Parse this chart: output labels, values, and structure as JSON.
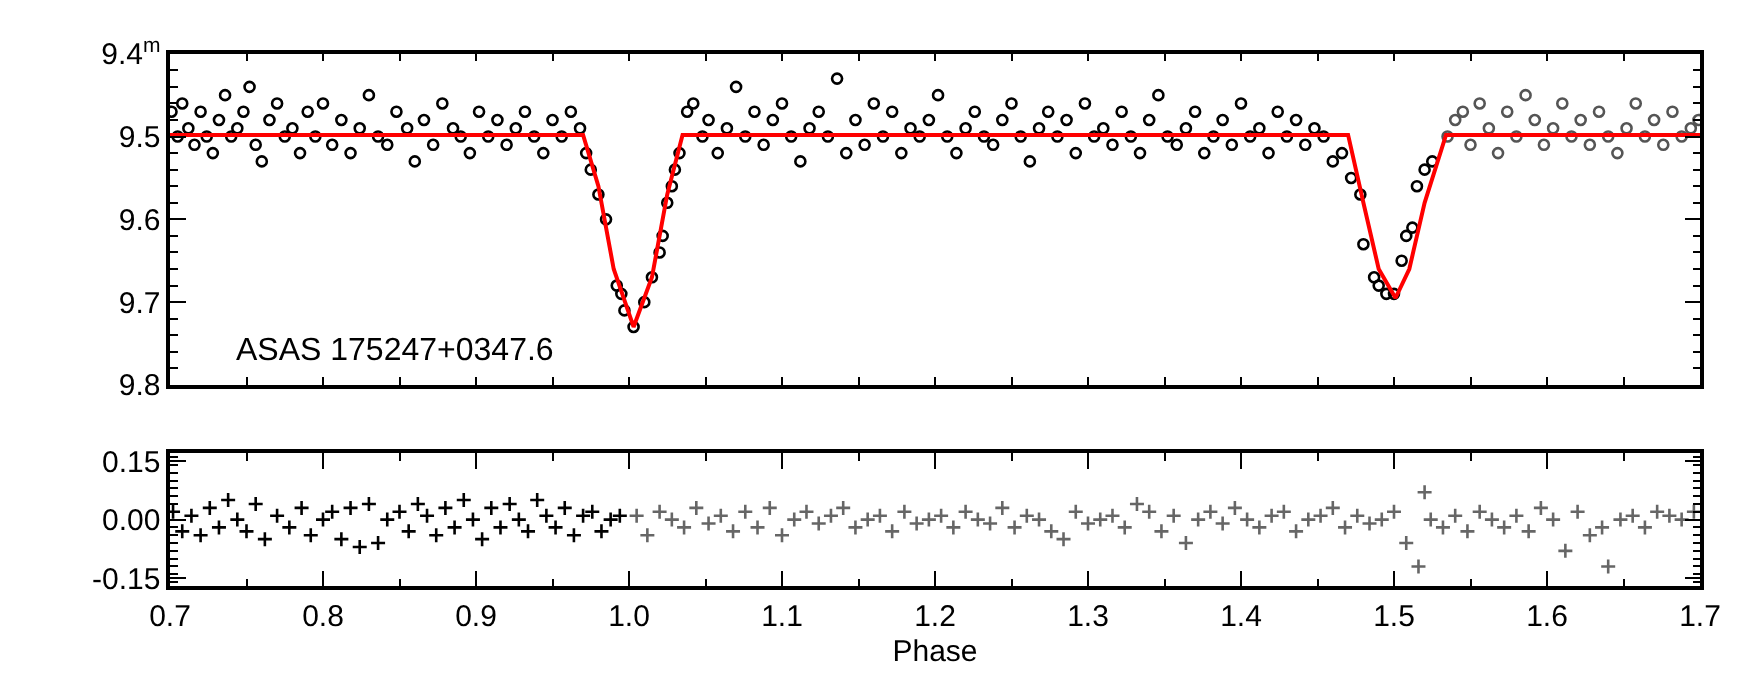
{
  "chart_data": [
    {
      "type": "scatter",
      "marker": "circle",
      "tick_labels": "y",
      "xlim": [
        0.7,
        1.7
      ],
      "xticks": [
        {
          "value": 0.7,
          "label": null
        },
        {
          "value": 0.8,
          "label": null
        },
        {
          "value": 0.9,
          "label": null
        },
        {
          "value": 1.0,
          "label": null
        },
        {
          "value": 1.1,
          "label": null
        },
        {
          "value": 1.2,
          "label": null
        },
        {
          "value": 1.3,
          "label": null
        },
        {
          "value": 1.4,
          "label": null
        },
        {
          "value": 1.5,
          "label": null
        },
        {
          "value": 1.6,
          "label": null
        },
        {
          "value": 1.7,
          "label": null
        }
      ],
      "ylim": [
        9.8,
        9.4
      ],
      "yticks": [
        {
          "value": 9.4,
          "label": "9.4$^{m}$"
        },
        {
          "value": 9.5,
          "label": "9.5"
        },
        {
          "value": 9.6,
          "label": "9.6"
        },
        {
          "value": 9.7,
          "label": "9.7"
        },
        {
          "value": 9.8,
          "label": "9.8"
        }
      ],
      "annotations": [
        "ASAS 175247+0347.6"
      ],
      "series": [
        {
          "color": "#000000",
          "x": [
            0.701,
            0.705,
            0.708,
            0.712,
            0.716,
            0.72,
            0.724,
            0.728,
            0.732,
            0.736,
            0.74,
            0.744,
            0.748,
            0.752,
            0.756,
            0.76,
            0.765,
            0.77,
            0.775,
            0.78,
            0.785,
            0.79,
            0.795,
            0.8,
            0.806,
            0.812,
            0.818,
            0.824,
            0.83,
            0.836,
            0.842,
            0.848,
            0.855,
            0.86,
            0.866,
            0.872,
            0.878,
            0.885,
            0.89,
            0.896,
            0.902,
            0.908,
            0.914,
            0.92,
            0.926,
            0.932,
            0.938,
            0.944,
            0.95,
            0.956,
            0.962,
            0.968,
            0.972,
            0.975,
            0.98,
            0.985,
            0.992,
            0.995,
            0.997,
            1.003,
            1.01,
            1.015,
            1.02,
            1.022,
            1.025,
            1.028,
            1.03,
            1.033,
            1.038,
            1.042,
            1.048,
            1.052,
            1.058,
            1.064,
            1.07,
            1.076,
            1.082,
            1.088,
            1.094,
            1.1,
            1.106,
            1.112,
            1.118,
            1.124,
            1.13,
            1.136,
            1.142,
            1.148,
            1.154,
            1.16,
            1.166,
            1.172,
            1.178,
            1.184,
            1.19,
            1.196,
            1.202,
            1.208,
            1.214,
            1.22,
            1.226,
            1.232,
            1.238,
            1.244,
            1.25,
            1.256,
            1.262,
            1.268,
            1.274,
            1.28,
            1.286,
            1.292,
            1.298,
            1.304,
            1.31,
            1.316,
            1.322,
            1.328,
            1.334,
            1.34,
            1.346,
            1.352,
            1.358,
            1.364,
            1.37,
            1.376,
            1.382,
            1.388,
            1.394,
            1.4,
            1.406,
            1.412,
            1.418,
            1.424,
            1.43,
            1.436,
            1.442,
            1.448,
            1.454,
            1.46,
            1.466,
            1.472,
            1.478,
            1.48,
            1.487,
            1.49,
            1.495,
            1.5,
            1.505,
            1.508,
            1.512,
            1.515,
            1.52,
            1.525
          ],
          "values": [
            9.47,
            9.5,
            9.46,
            9.49,
            9.51,
            9.47,
            9.5,
            9.52,
            9.48,
            9.45,
            9.5,
            9.49,
            9.47,
            9.44,
            9.51,
            9.53,
            9.48,
            9.46,
            9.5,
            9.49,
            9.52,
            9.47,
            9.5,
            9.46,
            9.51,
            9.48,
            9.52,
            9.49,
            9.45,
            9.5,
            9.51,
            9.47,
            9.49,
            9.53,
            9.48,
            9.51,
            9.46,
            9.49,
            9.5,
            9.52,
            9.47,
            9.5,
            9.48,
            9.51,
            9.49,
            9.47,
            9.5,
            9.52,
            9.48,
            9.5,
            9.47,
            9.49,
            9.52,
            9.54,
            9.57,
            9.6,
            9.68,
            9.69,
            9.71,
            9.73,
            9.7,
            9.67,
            9.64,
            9.62,
            9.58,
            9.56,
            9.54,
            9.52,
            9.47,
            9.46,
            9.5,
            9.48,
            9.52,
            9.49,
            9.44,
            9.5,
            9.47,
            9.51,
            9.48,
            9.46,
            9.5,
            9.53,
            9.49,
            9.47,
            9.5,
            9.43,
            9.52,
            9.48,
            9.51,
            9.46,
            9.5,
            9.47,
            9.52,
            9.49,
            9.5,
            9.48,
            9.45,
            9.5,
            9.52,
            9.49,
            9.47,
            9.5,
            9.51,
            9.48,
            9.46,
            9.5,
            9.53,
            9.49,
            9.47,
            9.5,
            9.48,
            9.52,
            9.46,
            9.5,
            9.49,
            9.51,
            9.47,
            9.5,
            9.52,
            9.48,
            9.45,
            9.5,
            9.51,
            9.49,
            9.47,
            9.52,
            9.5,
            9.48,
            9.51,
            9.46,
            9.5,
            9.49,
            9.52,
            9.47,
            9.5,
            9.48,
            9.51,
            9.49,
            9.5,
            9.53,
            9.52,
            9.55,
            9.57,
            9.63,
            9.67,
            9.68,
            9.69,
            9.69,
            9.65,
            9.62,
            9.61,
            9.56,
            9.54,
            9.53
          ]
        },
        {
          "color": "#555555",
          "x": [
            1.535,
            1.54,
            1.545,
            1.55,
            1.556,
            1.562,
            1.568,
            1.574,
            1.58,
            1.586,
            1.592,
            1.598,
            1.604,
            1.61,
            1.616,
            1.622,
            1.628,
            1.634,
            1.64,
            1.646,
            1.652,
            1.658,
            1.664,
            1.67,
            1.676,
            1.682,
            1.688,
            1.694,
            1.699
          ],
          "values": [
            9.5,
            9.48,
            9.47,
            9.51,
            9.46,
            9.49,
            9.52,
            9.47,
            9.5,
            9.45,
            9.48,
            9.51,
            9.49,
            9.46,
            9.5,
            9.48,
            9.51,
            9.47,
            9.5,
            9.52,
            9.49,
            9.46,
            9.5,
            9.48,
            9.51,
            9.47,
            9.5,
            9.49,
            9.48
          ]
        },
        {
          "type": "line",
          "marker": "none",
          "color": "#ff0000",
          "x": [
            0.7,
            0.97,
            0.98,
            0.99,
            1.003,
            1.015,
            1.025,
            1.035,
            1.47,
            1.48,
            1.49,
            1.501,
            1.51,
            1.52,
            1.534,
            1.7
          ],
          "values": [
            9.498,
            9.498,
            9.56,
            9.66,
            9.73,
            9.67,
            9.57,
            9.498,
            9.498,
            9.58,
            9.66,
            9.695,
            9.66,
            9.58,
            9.498,
            9.498
          ]
        }
      ]
    },
    {
      "type": "scatter",
      "marker": "cross",
      "xlabel": "Phase",
      "xlim": [
        0.7,
        1.7
      ],
      "xticks": [
        {
          "value": 0.7,
          "label": "0.7"
        },
        {
          "value": 0.8,
          "label": "0.8"
        },
        {
          "value": 0.9,
          "label": "0.9"
        },
        {
          "value": 1.0,
          "label": "1.0"
        },
        {
          "value": 1.1,
          "label": "1.1"
        },
        {
          "value": 1.2,
          "label": "1.2"
        },
        {
          "value": 1.3,
          "label": "1.3"
        },
        {
          "value": 1.4,
          "label": "1.4"
        },
        {
          "value": 1.5,
          "label": "1.5"
        },
        {
          "value": 1.6,
          "label": "1.6"
        },
        {
          "value": 1.7,
          "label": "1.7"
        }
      ],
      "ylim": [
        -0.17,
        0.17
      ],
      "yticks": [
        {
          "value": 0.15,
          "label": "0.15"
        },
        {
          "value": 0,
          "label": "0.00"
        },
        {
          "value": -0.15,
          "label": "-0.15"
        }
      ],
      "series": [
        {
          "color": "#000000",
          "x": [
            0.702,
            0.708,
            0.714,
            0.72,
            0.726,
            0.732,
            0.738,
            0.744,
            0.75,
            0.756,
            0.762,
            0.77,
            0.778,
            0.786,
            0.792,
            0.8,
            0.806,
            0.812,
            0.818,
            0.824,
            0.83,
            0.836,
            0.842,
            0.85,
            0.856,
            0.862,
            0.868,
            0.874,
            0.88,
            0.886,
            0.892,
            0.898,
            0.904,
            0.91,
            0.916,
            0.922,
            0.928,
            0.934,
            0.94,
            0.946,
            0.952,
            0.958,
            0.964,
            0.97,
            0.976,
            0.982,
            0.988,
            0.994
          ],
          "values": [
            0.02,
            -0.03,
            0.01,
            -0.04,
            0.03,
            -0.02,
            0.05,
            0.0,
            -0.03,
            0.04,
            -0.05,
            0.01,
            -0.02,
            0.03,
            -0.04,
            0.0,
            0.02,
            -0.05,
            0.03,
            -0.07,
            0.04,
            -0.06,
            0.0,
            0.02,
            -0.03,
            0.04,
            0.01,
            -0.04,
            0.03,
            -0.02,
            0.05,
            0.0,
            -0.05,
            0.03,
            -0.02,
            0.04,
            0.0,
            -0.03,
            0.05,
            0.01,
            -0.02,
            0.03,
            -0.04,
            0.01,
            0.02,
            -0.03,
            0.0,
            0.01
          ]
        },
        {
          "color": "#666666",
          "x": [
            1.005,
            1.012,
            1.02,
            1.028,
            1.036,
            1.044,
            1.052,
            1.06,
            1.068,
            1.076,
            1.084,
            1.092,
            1.1,
            1.108,
            1.116,
            1.124,
            1.132,
            1.14,
            1.148,
            1.156,
            1.164,
            1.172,
            1.18,
            1.188,
            1.196,
            1.204,
            1.212,
            1.22,
            1.228,
            1.236,
            1.244,
            1.252,
            1.26,
            1.268,
            1.276,
            1.284,
            1.292,
            1.3,
            1.308,
            1.316,
            1.324,
            1.332,
            1.34,
            1.348,
            1.356,
            1.364,
            1.372,
            1.38,
            1.388,
            1.396,
            1.404,
            1.412,
            1.42,
            1.428,
            1.436,
            1.444,
            1.452,
            1.46,
            1.468,
            1.476,
            1.484,
            1.492,
            1.5,
            1.508,
            1.516,
            1.52,
            1.524,
            1.532,
            1.54,
            1.548,
            1.556,
            1.564,
            1.572,
            1.58,
            1.588,
            1.596,
            1.604,
            1.612,
            1.62,
            1.628,
            1.636,
            1.64,
            1.648,
            1.656,
            1.664,
            1.672,
            1.68,
            1.688,
            1.696
          ],
          "values": [
            0.01,
            -0.04,
            0.02,
            0.0,
            -0.02,
            0.03,
            -0.01,
            0.01,
            -0.03,
            0.02,
            -0.02,
            0.03,
            -0.04,
            0.0,
            0.02,
            -0.01,
            0.01,
            0.03,
            -0.02,
            0.0,
            0.01,
            -0.03,
            0.02,
            -0.01,
            0.0,
            0.01,
            -0.02,
            0.02,
            0.0,
            -0.01,
            0.03,
            -0.02,
            0.01,
            0.0,
            -0.03,
            -0.05,
            0.02,
            -0.01,
            0.0,
            0.01,
            -0.02,
            0.04,
            0.02,
            -0.03,
            0.01,
            -0.06,
            0.0,
            0.02,
            -0.01,
            0.03,
            0.0,
            -0.02,
            0.01,
            0.02,
            -0.03,
            0.0,
            0.01,
            0.03,
            -0.02,
            0.01,
            -0.01,
            0.0,
            0.02,
            -0.06,
            -0.12,
            0.07,
            0.0,
            -0.02,
            0.01,
            -0.03,
            0.02,
            0.0,
            -0.02,
            0.01,
            -0.03,
            0.03,
            0.0,
            -0.08,
            0.02,
            -0.04,
            -0.02,
            -0.12,
            0.0,
            0.01,
            -0.02,
            0.02,
            0.01,
            0.0,
            0.02
          ]
        }
      ]
    }
  ]
}
